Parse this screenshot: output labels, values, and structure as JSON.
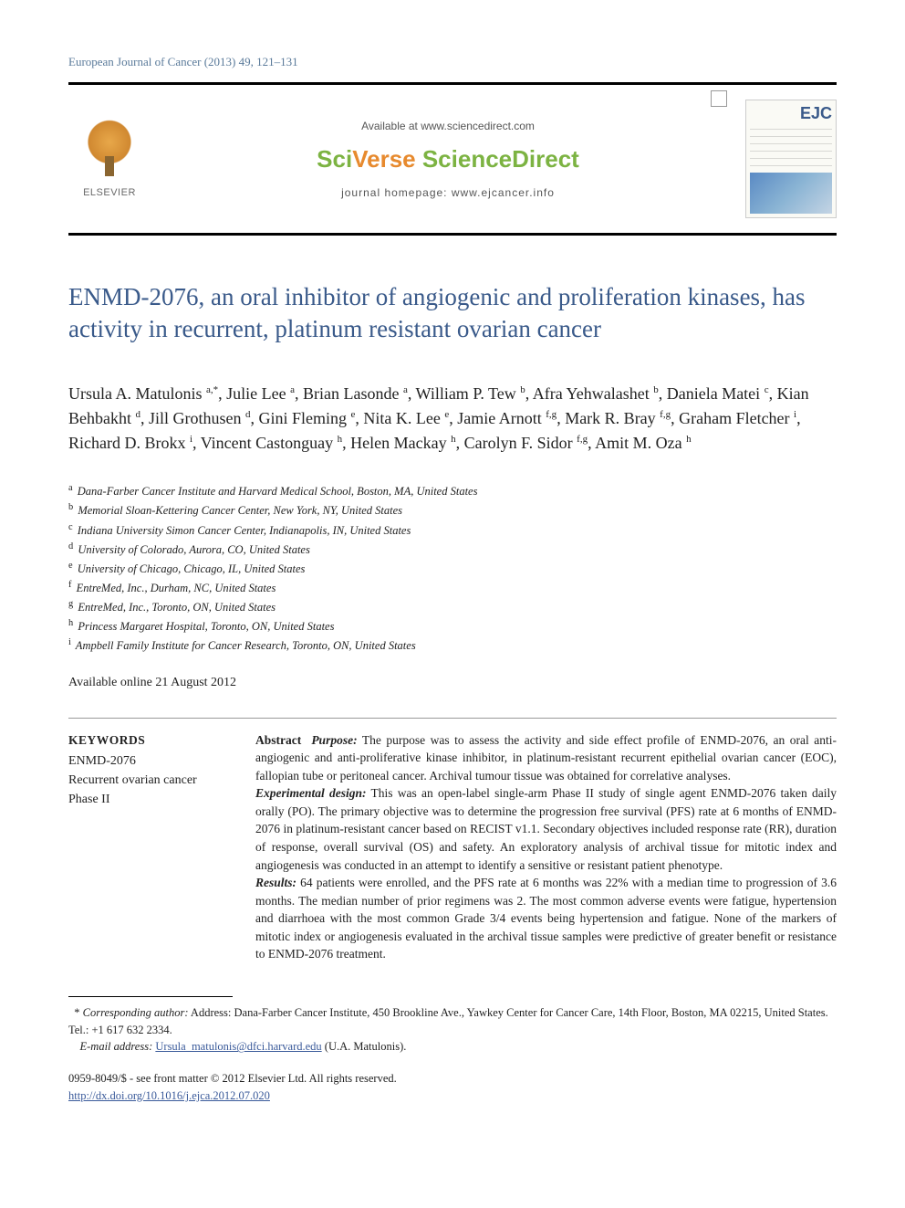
{
  "journal_ref": "European Journal of Cancer (2013) 49, 121–131",
  "header": {
    "available_at": "Available at www.sciencedirect.com",
    "sciverse_sci": "Sci",
    "sciverse_verse": "Verse ",
    "sciverse_direct": "ScienceDirect",
    "homepage": "journal homepage: www.ejcancer.info",
    "elsevier_label": "ELSEVIER",
    "ejc_label": "EJC"
  },
  "title": "ENMD-2076, an oral inhibitor of angiogenic and proliferation kinases, has activity in recurrent, platinum resistant ovarian cancer",
  "authors_html": "Ursula A. Matulonis <sup>a,*</sup>, Julie Lee <sup>a</sup>, Brian Lasonde <sup>a</sup>, William P. Tew <sup>b</sup>, Afra Yehwalashet <sup>b</sup>, Daniela Matei <sup>c</sup>, Kian Behbakht <sup>d</sup>, Jill Grothusen <sup>d</sup>, Gini Fleming <sup>e</sup>, Nita K. Lee <sup>e</sup>, Jamie Arnott <sup>f,g</sup>, Mark R. Bray <sup>f,g</sup>, Graham Fletcher <sup>i</sup>, Richard D. Brokx <sup>i</sup>, Vincent Castonguay <sup>h</sup>, Helen Mackay <sup>h</sup>, Carolyn F. Sidor <sup>f,g</sup>, Amit M. Oza <sup>h</sup>",
  "affiliations": [
    {
      "sup": "a",
      "text": "Dana-Farber Cancer Institute and Harvard Medical School, Boston, MA, United States"
    },
    {
      "sup": "b",
      "text": "Memorial Sloan-Kettering Cancer Center, New York, NY, United States"
    },
    {
      "sup": "c",
      "text": "Indiana University Simon Cancer Center, Indianapolis, IN, United States"
    },
    {
      "sup": "d",
      "text": "University of Colorado, Aurora, CO, United States"
    },
    {
      "sup": "e",
      "text": "University of Chicago, Chicago, IL, United States"
    },
    {
      "sup": "f",
      "text": "EntreMed, Inc., Durham, NC, United States"
    },
    {
      "sup": "g",
      "text": "EntreMed, Inc., Toronto, ON, United States"
    },
    {
      "sup": "h",
      "text": "Princess Margaret Hospital, Toronto, ON, United States"
    },
    {
      "sup": "i",
      "text": "Ampbell Family Institute for Cancer Research, Toronto, ON, United States"
    }
  ],
  "available_online": "Available online 21 August 2012",
  "keywords": {
    "heading": "KEYWORDS",
    "items": [
      "ENMD-2076",
      "Recurrent ovarian cancer",
      "Phase II"
    ]
  },
  "abstract": {
    "label": "Abstract",
    "purpose_label": "Purpose:",
    "purpose": " The purpose was to assess the activity and side effect profile of ENMD-2076, an oral anti-angiogenic and anti-proliferative kinase inhibitor, in platinum-resistant recurrent epithelial ovarian cancer (EOC), fallopian tube or peritoneal cancer. Archival tumour tissue was obtained for correlative analyses.",
    "design_label": "Experimental design:",
    "design": " This was an open-label single-arm Phase II study of single agent ENMD-2076 taken daily orally (PO). The primary objective was to determine the progression free survival (PFS) rate at 6 months of ENMD-2076 in platinum-resistant cancer based on RECIST v1.1. Secondary objectives included response rate (RR), duration of response, overall survival (OS) and safety. An exploratory analysis of archival tissue for mitotic index and angiogenesis was conducted in an attempt to identify a sensitive or resistant patient phenotype.",
    "results_label": "Results:",
    "results": " 64 patients were enrolled, and the PFS rate at 6 months was 22% with a median time to progression of 3.6 months. The median number of prior regimens was 2. The most common adverse events were fatigue, hypertension and diarrhoea with the most common Grade 3/4 events being hypertension and fatigue. None of the markers of mitotic index or angiogenesis evaluated in the archival tissue samples were predictive of greater benefit or resistance to ENMD-2076 treatment."
  },
  "corresponding": {
    "star": "*",
    "label": "Corresponding author:",
    "address": " Address: Dana-Farber Cancer Institute, 450 Brookline Ave., Yawkey Center for Cancer Care, 14th Floor, Boston, MA 02215, United States. Tel.: +1 617 632 2334.",
    "email_label": "E-mail address:",
    "email": "Ursula_matulonis@dfci.harvard.edu",
    "email_suffix": " (U.A. Matulonis)."
  },
  "copyright": {
    "issn": "0959-8049/$ - see front matter © 2012 Elsevier Ltd. All rights reserved.",
    "doi": "http://dx.doi.org/10.1016/j.ejca.2012.07.020"
  },
  "colors": {
    "link": "#3a5a9a",
    "title": "#3a5a8a",
    "sci_green": "#7cb342",
    "verse_orange": "#e78a2e"
  }
}
